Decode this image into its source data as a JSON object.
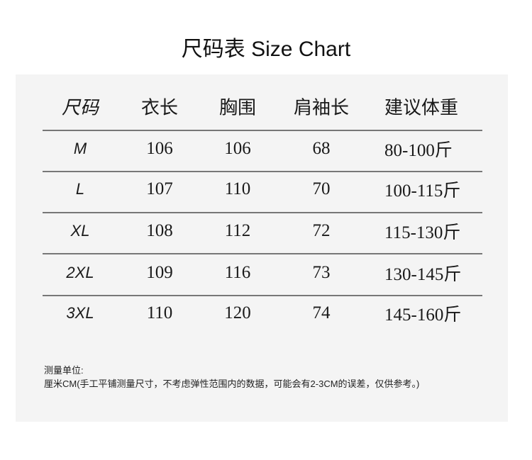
{
  "title": "尺码表  Size Chart",
  "table": {
    "headers": [
      "尺码",
      "衣长",
      "胸围",
      "肩袖长",
      "建议体重"
    ],
    "rows": [
      [
        "M",
        "106",
        "106",
        "68",
        "80-100斤"
      ],
      [
        "L",
        "107",
        "110",
        "70",
        "100-115斤"
      ],
      [
        "XL",
        "108",
        "112",
        "72",
        "115-130斤"
      ],
      [
        "2XL",
        "109",
        "116",
        "73",
        "130-145斤"
      ],
      [
        "3XL",
        "110",
        "120",
        "74",
        "145-160斤"
      ]
    ]
  },
  "notes": {
    "label": "测量单位:",
    "text": "厘米CM(手工平铺测量尺寸，不考虑弹性范围内的数据，可能会有2-3CM的误差，仅供参考。)"
  },
  "colors": {
    "panel": "#f4f4f4",
    "divider": "#777777"
  }
}
